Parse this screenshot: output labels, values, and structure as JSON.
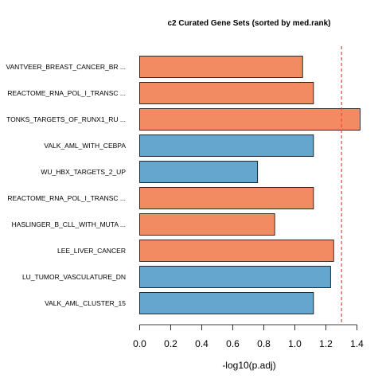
{
  "chart_data": {
    "type": "bar",
    "orientation": "horizontal",
    "title": "c2 Curated Gene Sets (sorted by med.rank)",
    "xlabel": "-log10(p.adj)",
    "ylabel": "",
    "xlim": [
      0,
      1.4
    ],
    "xticks": [
      "0.0",
      "0.2",
      "0.4",
      "0.6",
      "0.8",
      "1.0",
      "1.2",
      "1.4"
    ],
    "categories": [
      "VANTVEER_BREAST_CANCER_BR ...",
      "REACTOME_RNA_POL_I_TRANSC ...",
      "TONKS_TARGETS_OF_RUNX1_RU ...",
      "VALK_AML_WITH_CEBPA",
      "WU_HBX_TARGETS_2_UP",
      "REACTOME_RNA_POL_I_TRANSC ...",
      "HASLINGER_B_CLL_WITH_MUTA ...",
      "LEE_LIVER_CANCER",
      "LU_TUMOR_VASCULATURE_DN",
      "VALK_AML_CLUSTER_15"
    ],
    "values": [
      1.05,
      1.12,
      1.42,
      1.12,
      0.76,
      1.12,
      0.87,
      1.25,
      1.23,
      1.12
    ],
    "bar_colors": [
      "#F28B62",
      "#F28B62",
      "#F28B62",
      "#64A6CD",
      "#64A6CD",
      "#F28B62",
      "#F28B62",
      "#F28B62",
      "#64A6CD",
      "#64A6CD"
    ],
    "threshold": 1.301,
    "threshold_color": "#FF3B3B",
    "grid": false,
    "legend": "none"
  }
}
